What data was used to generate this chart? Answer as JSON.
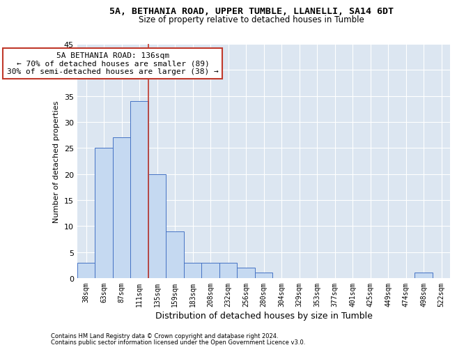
{
  "title1": "5A, BETHANIA ROAD, UPPER TUMBLE, LLANELLI, SA14 6DT",
  "title2": "Size of property relative to detached houses in Tumble",
  "xlabel": "Distribution of detached houses by size in Tumble",
  "ylabel": "Number of detached properties",
  "footnote1": "Contains HM Land Registry data © Crown copyright and database right 2024.",
  "footnote2": "Contains public sector information licensed under the Open Government Licence v3.0.",
  "annotation_line1": "5A BETHANIA ROAD: 136sqm",
  "annotation_line2": "← 70% of detached houses are smaller (89)",
  "annotation_line3": "30% of semi-detached houses are larger (38) →",
  "bar_values": [
    3,
    25,
    27,
    34,
    20,
    9,
    3,
    3,
    3,
    2,
    1,
    0,
    0,
    0,
    0,
    0,
    0,
    0,
    0,
    1,
    0
  ],
  "categories": [
    "38sqm",
    "63sqm",
    "87sqm",
    "111sqm",
    "135sqm",
    "159sqm",
    "183sqm",
    "208sqm",
    "232sqm",
    "256sqm",
    "280sqm",
    "304sqm",
    "329sqm",
    "353sqm",
    "377sqm",
    "401sqm",
    "425sqm",
    "449sqm",
    "474sqm",
    "498sqm",
    "522sqm"
  ],
  "bar_color": "#c5d9f1",
  "bar_edge_color": "#4472c4",
  "vline_color": "#c0392b",
  "annotation_box_edgecolor": "#c0392b",
  "plot_bg_color": "#dce6f1",
  "ylim": [
    0,
    45
  ],
  "yticks": [
    0,
    5,
    10,
    15,
    20,
    25,
    30,
    35,
    40,
    45
  ],
  "title1_fontsize": 9.5,
  "title2_fontsize": 8.5,
  "xlabel_fontsize": 9,
  "ylabel_fontsize": 8,
  "tick_fontsize": 8,
  "xtick_fontsize": 7,
  "footnote_fontsize": 6,
  "ann_fontsize": 8
}
